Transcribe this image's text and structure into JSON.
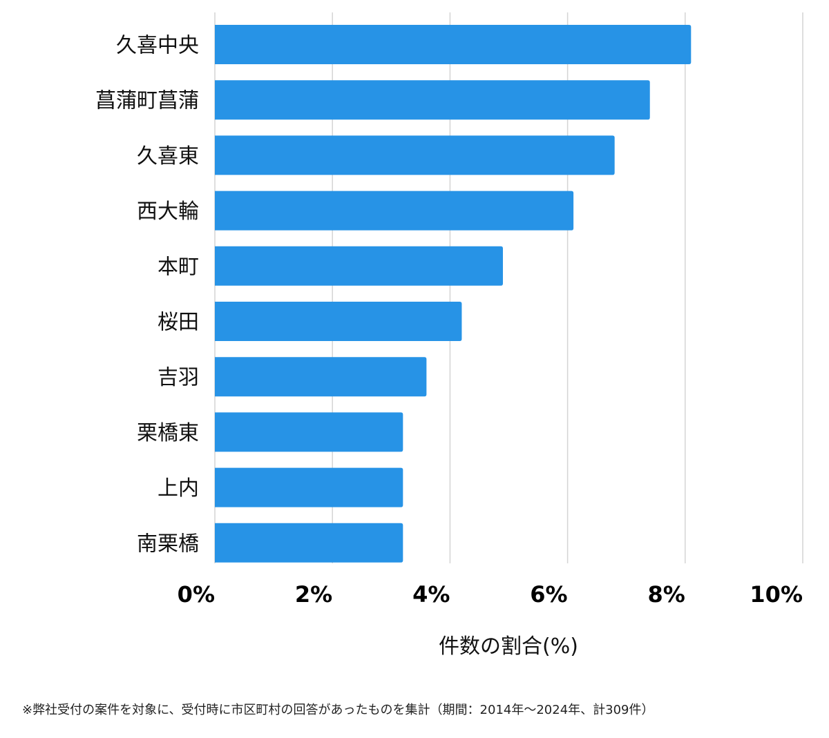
{
  "chart_data": {
    "type": "bar",
    "orientation": "horizontal",
    "categories": [
      "久喜中央",
      "菖蒲町菖蒲",
      "久喜東",
      "西大輪",
      "本町",
      "桜田",
      "吉羽",
      "栗橋東",
      "上内",
      "南栗橋"
    ],
    "values": [
      8.1,
      7.4,
      6.8,
      6.1,
      4.9,
      4.2,
      3.6,
      3.2,
      3.2,
      3.2
    ],
    "xlim": [
      0,
      10
    ],
    "xticks": [
      0,
      2,
      4,
      6,
      8,
      10
    ],
    "xtick_labels": [
      "0%",
      "2%",
      "4%",
      "6%",
      "8%",
      "10%"
    ],
    "xlabel": "件数の割合(%)",
    "ylabel": "",
    "bar_color": "#2793e6",
    "grid": true
  },
  "footnote": "※弊社受付の案件を対象に、受付時に市区町村の回答があったものを集計（期間：2014年～2024年、計309件）"
}
